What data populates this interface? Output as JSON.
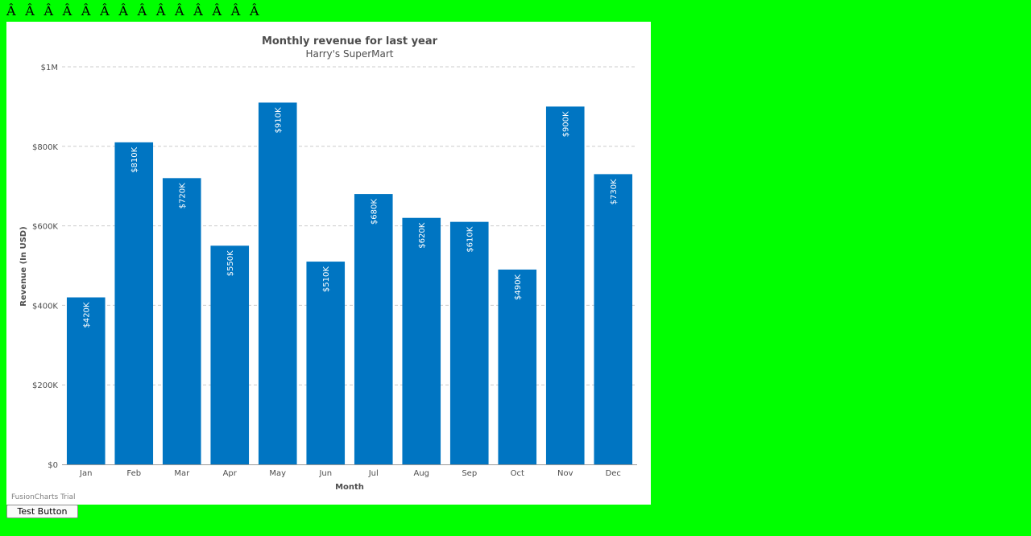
{
  "header": {
    "garbled_text": "Â  Â  Â  Â  Â  Â  Â  Â  Â  Â  Â  Â  Â  Â"
  },
  "chart_data": {
    "type": "bar",
    "title": "Monthly revenue for last year",
    "subtitle": "Harry's SuperMart",
    "xlabel": "Month",
    "ylabel": "Revenue (In USD)",
    "categories": [
      "Jan",
      "Feb",
      "Mar",
      "Apr",
      "May",
      "Jun",
      "Jul",
      "Aug",
      "Sep",
      "Oct",
      "Nov",
      "Dec"
    ],
    "values": [
      420000,
      810000,
      720000,
      550000,
      910000,
      510000,
      680000,
      620000,
      610000,
      490000,
      900000,
      730000
    ],
    "value_labels": [
      "$420K",
      "$810K",
      "$720K",
      "$550K",
      "$910K",
      "$510K",
      "$680K",
      "$620K",
      "$610K",
      "$490K",
      "$900K",
      "$730K"
    ],
    "y_ticks": [
      0,
      200000,
      400000,
      600000,
      800000,
      1000000
    ],
    "y_tick_labels": [
      "$0",
      "$200K",
      "$400K",
      "$600K",
      "$800K",
      "$1M"
    ],
    "ylim": [
      0,
      1000000
    ],
    "grid": true,
    "bar_color": "#0075c2",
    "watermark": "FusionCharts Trial"
  },
  "controls": {
    "test_button_label": "Test Button"
  }
}
